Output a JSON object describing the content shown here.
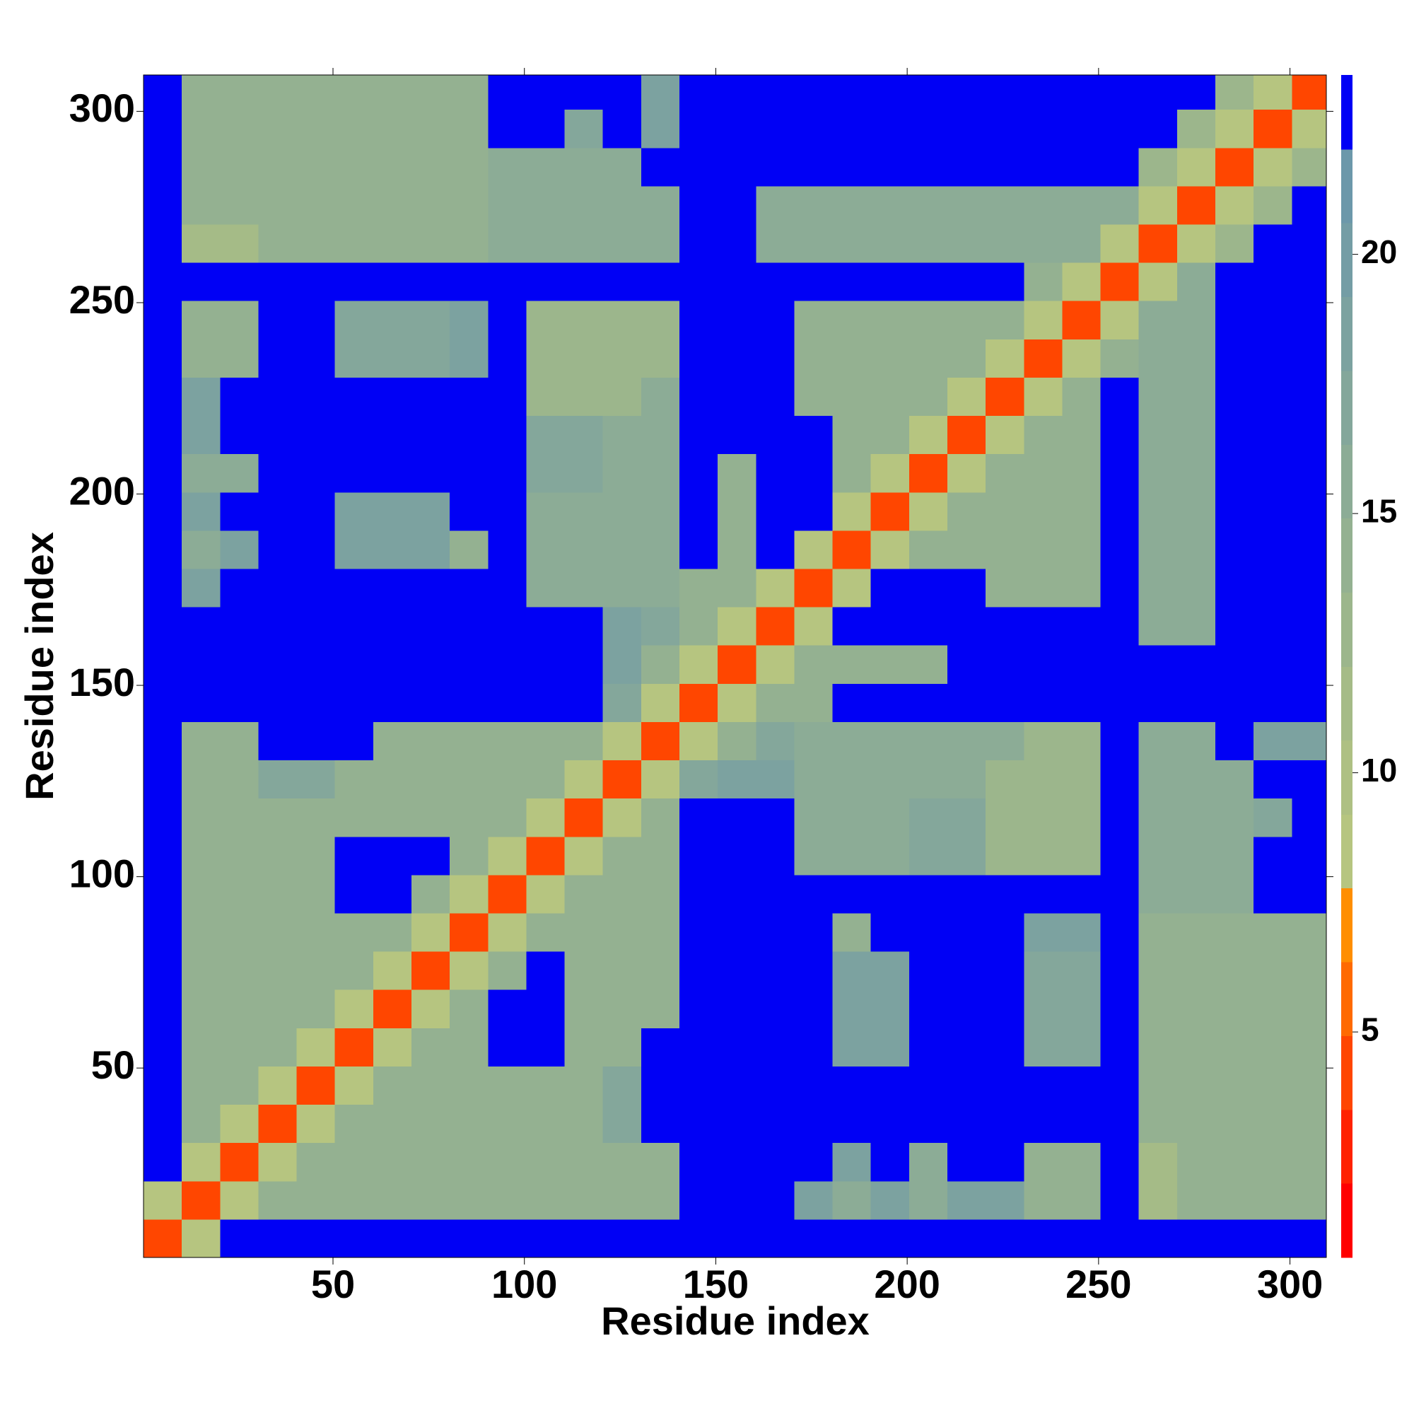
{
  "chart_data": {
    "type": "heatmap",
    "xlabel": "Residue index",
    "ylabel": "Residue index",
    "xlim": [
      0.5,
      309.5
    ],
    "ylim": [
      0.5,
      309.5
    ],
    "xticks": [
      50,
      100,
      150,
      200,
      250,
      300
    ],
    "yticks": [
      50,
      100,
      150,
      200,
      250,
      300
    ],
    "xbins": [
      0.5,
      10.5,
      20.5,
      30.5,
      40.5,
      50.5,
      60.5,
      70.5,
      80.5,
      90.5,
      100.5,
      110.5,
      120.5,
      130.5,
      140.5,
      150.5,
      160.5,
      170.5,
      180.5,
      190.5,
      200.5,
      210.5,
      220.5,
      230.5,
      240.5,
      250.5,
      260.5,
      270.5,
      280.5,
      290.5,
      300.5,
      309.5
    ],
    "ybins": [
      0.5,
      10.5,
      20.5,
      30.5,
      40.5,
      50.5,
      60.5,
      70.5,
      80.5,
      90.5,
      100.5,
      110.5,
      120.5,
      130.5,
      140.5,
      150.5,
      160.5,
      170.5,
      180.5,
      190.5,
      200.5,
      210.5,
      220.5,
      230.5,
      240.5,
      250.5,
      260.5,
      270.5,
      280.5,
      290.5,
      300.5,
      309.5
    ],
    "values": [
      [
        3.8,
        8.5,
        23,
        23,
        23,
        23,
        23,
        23,
        23,
        23,
        23,
        23,
        23,
        23,
        23,
        23,
        23,
        23,
        23,
        23,
        23,
        23,
        23,
        23,
        23,
        23,
        23,
        23,
        23,
        23,
        23
      ],
      [
        8.5,
        3.8,
        8.5,
        14,
        14,
        14,
        14,
        14,
        14,
        14,
        14,
        14,
        14,
        14,
        23,
        23,
        23,
        18,
        15,
        19,
        15,
        19,
        19,
        14,
        14,
        23,
        12,
        14,
        14,
        14,
        14
      ],
      [
        23,
        8.5,
        3.8,
        8.5,
        14,
        14,
        14,
        14,
        14,
        14,
        14,
        14,
        14,
        14,
        23,
        23,
        23,
        23,
        18,
        23,
        16,
        23,
        23,
        14,
        14,
        23,
        12,
        14,
        14,
        14,
        14
      ],
      [
        23,
        14,
        8.5,
        3.8,
        8.5,
        14,
        14,
        14,
        14,
        14,
        14,
        14,
        17,
        23,
        23,
        23,
        23,
        23,
        23,
        23,
        23,
        23,
        23,
        23,
        23,
        23,
        14,
        14,
        14,
        14,
        14
      ],
      [
        23,
        14,
        14,
        8.5,
        3.8,
        8.5,
        14,
        14,
        14,
        14,
        14,
        14,
        17,
        23,
        23,
        23,
        23,
        23,
        23,
        23,
        23,
        23,
        23,
        23,
        23,
        23,
        14,
        14,
        14,
        14,
        14
      ],
      [
        23,
        14,
        14,
        14,
        8.5,
        3.8,
        8.5,
        14,
        14,
        23,
        23,
        14,
        14,
        23,
        23,
        23,
        23,
        23,
        18,
        18,
        23,
        23,
        23,
        17,
        17,
        23,
        14,
        14,
        14,
        14,
        14
      ],
      [
        23,
        14,
        14,
        14,
        14,
        8.5,
        3.8,
        8.5,
        14,
        23,
        23,
        14,
        14,
        14,
        23,
        23,
        23,
        23,
        18,
        18,
        23,
        23,
        23,
        17,
        17,
        23,
        14,
        14,
        14,
        14,
        14
      ],
      [
        23,
        14,
        14,
        14,
        14,
        14,
        8.5,
        3.8,
        8.5,
        14,
        23,
        14,
        14,
        14,
        23,
        23,
        23,
        23,
        18,
        18,
        23,
        23,
        23,
        17,
        17,
        23,
        14,
        14,
        14,
        14,
        14
      ],
      [
        23,
        14,
        14,
        14,
        14,
        14,
        14,
        8.5,
        3.8,
        8.5,
        14,
        14,
        14,
        14,
        23,
        23,
        23,
        23,
        14,
        23,
        23,
        23,
        23,
        18,
        18,
        23,
        14,
        14,
        14,
        14,
        14
      ],
      [
        23,
        14,
        14,
        14,
        14,
        23,
        23,
        14,
        8.5,
        3.8,
        8.5,
        14,
        14,
        14,
        23,
        23,
        23,
        23,
        23,
        23,
        23,
        23,
        23,
        23,
        23,
        23,
        15,
        15,
        15,
        23,
        23
      ],
      [
        23,
        14,
        14,
        14,
        14,
        23,
        23,
        23,
        14,
        8.5,
        3.8,
        8.5,
        14,
        14,
        23,
        23,
        23,
        15,
        15,
        15,
        17,
        17,
        13,
        13,
        13,
        23,
        15,
        15,
        15,
        23,
        23
      ],
      [
        23,
        14,
        14,
        14,
        14,
        14,
        14,
        14,
        14,
        14,
        8.5,
        3.8,
        8.5,
        14,
        23,
        23,
        23,
        15,
        15,
        15,
        17,
        17,
        13,
        13,
        13,
        23,
        15,
        15,
        15,
        17,
        23
      ],
      [
        23,
        14,
        14,
        17,
        17,
        14,
        14,
        14,
        14,
        14,
        14,
        8.5,
        3.8,
        8.5,
        17,
        18,
        18,
        15,
        15,
        15,
        16,
        16,
        13,
        13,
        13,
        23,
        15,
        15,
        15,
        23,
        23
      ],
      [
        23,
        14,
        14,
        23,
        23,
        23,
        14,
        14,
        14,
        14,
        14,
        14,
        8.5,
        3.8,
        8.5,
        14,
        17,
        15,
        15,
        15,
        16,
        16,
        15,
        13,
        13,
        23,
        15,
        15,
        23,
        19,
        19
      ],
      [
        23,
        23,
        23,
        23,
        23,
        23,
        23,
        23,
        23,
        23,
        23,
        23,
        17,
        8.5,
        3.8,
        8.5,
        14,
        14,
        23,
        23,
        23,
        23,
        23,
        23,
        23,
        23,
        23,
        23,
        23,
        23,
        23
      ],
      [
        23,
        23,
        23,
        23,
        23,
        23,
        23,
        23,
        23,
        23,
        23,
        23,
        18,
        14,
        8.5,
        3.8,
        8.5,
        14,
        14,
        14,
        14,
        23,
        23,
        23,
        23,
        23,
        23,
        23,
        23,
        23,
        23
      ],
      [
        23,
        23,
        23,
        23,
        23,
        23,
        23,
        23,
        23,
        23,
        23,
        23,
        18,
        17,
        14,
        8.5,
        3.8,
        8.5,
        23,
        23,
        23,
        23,
        23,
        23,
        23,
        23,
        16,
        16,
        23,
        23,
        23
      ],
      [
        23,
        18,
        23,
        23,
        23,
        23,
        23,
        23,
        23,
        23,
        15,
        15,
        15,
        15,
        14,
        14,
        8.5,
        3.8,
        8.5,
        23,
        23,
        23,
        14,
        14,
        14,
        23,
        16,
        16,
        23,
        23,
        23
      ],
      [
        23,
        15,
        18,
        23,
        23,
        18,
        18,
        18,
        14,
        23,
        15,
        15,
        15,
        15,
        23,
        14,
        23,
        8.5,
        3.8,
        8.5,
        14,
        14,
        14,
        14,
        14,
        23,
        16,
        16,
        23,
        23,
        23
      ],
      [
        23,
        19,
        23,
        23,
        23,
        18,
        18,
        18,
        23,
        23,
        15,
        15,
        15,
        15,
        23,
        14,
        23,
        23,
        8.5,
        3.8,
        8.5,
        14,
        14,
        14,
        14,
        23,
        16,
        16,
        23,
        23,
        23
      ],
      [
        23,
        15,
        16,
        23,
        23,
        23,
        23,
        23,
        23,
        23,
        17,
        17,
        16,
        16,
        23,
        14,
        23,
        23,
        14,
        8.5,
        3.8,
        8.5,
        14,
        14,
        14,
        23,
        16,
        16,
        23,
        23,
        23
      ],
      [
        23,
        19,
        23,
        23,
        23,
        23,
        23,
        23,
        23,
        23,
        17,
        17,
        16,
        16,
        23,
        23,
        23,
        23,
        14,
        14,
        8.5,
        3.8,
        8.5,
        14,
        14,
        23,
        16,
        16,
        23,
        23,
        23
      ],
      [
        23,
        19,
        23,
        23,
        23,
        23,
        23,
        23,
        23,
        23,
        13,
        13,
        13,
        15,
        23,
        23,
        23,
        14,
        14,
        14,
        14,
        8.5,
        3.8,
        8.5,
        14,
        23,
        16,
        16,
        23,
        23,
        23
      ],
      [
        23,
        14,
        14,
        23,
        23,
        17,
        17,
        17,
        18,
        23,
        13,
        13,
        13,
        13,
        23,
        23,
        23,
        14,
        14,
        14,
        14,
        14,
        8.5,
        3.8,
        8.5,
        14,
        16,
        16,
        23,
        23,
        23
      ],
      [
        23,
        14,
        14,
        23,
        23,
        17,
        17,
        17,
        18,
        23,
        13,
        13,
        13,
        13,
        23,
        23,
        23,
        14,
        14,
        14,
        14,
        14,
        14,
        8.5,
        3.8,
        8.5,
        16,
        16,
        23,
        23,
        23
      ],
      [
        23,
        23,
        23,
        23,
        23,
        23,
        23,
        23,
        23,
        23,
        23,
        23,
        23,
        23,
        23,
        23,
        23,
        23,
        23,
        23,
        23,
        23,
        23,
        14,
        8.5,
        3.8,
        8.5,
        16,
        23,
        23,
        23
      ],
      [
        23,
        12,
        12,
        14,
        14,
        14,
        14,
        14,
        14,
        15,
        15,
        15,
        15,
        15,
        23,
        23,
        16,
        16,
        16,
        16,
        16,
        16,
        16,
        16,
        16,
        8.5,
        3.8,
        8.5,
        13,
        23,
        23
      ],
      [
        23,
        14,
        14,
        14,
        14,
        14,
        14,
        14,
        14,
        15,
        15,
        15,
        15,
        15,
        23,
        23,
        16,
        16,
        16,
        16,
        16,
        16,
        16,
        16,
        16,
        16,
        8.5,
        3.8,
        8.5,
        13,
        23
      ],
      [
        23,
        14,
        14,
        14,
        14,
        14,
        14,
        14,
        14,
        15,
        15,
        15,
        15,
        23,
        23,
        23,
        23,
        23,
        23,
        23,
        23,
        23,
        23,
        23,
        23,
        23,
        13,
        8.5,
        3.8,
        8.5,
        13
      ],
      [
        23,
        14,
        14,
        14,
        14,
        14,
        14,
        14,
        14,
        23,
        23,
        17,
        23,
        19,
        23,
        23,
        23,
        23,
        23,
        23,
        23,
        23,
        23,
        23,
        23,
        23,
        23,
        13,
        8.5,
        3.8,
        8.5
      ],
      [
        23,
        14,
        14,
        14,
        14,
        14,
        14,
        14,
        14,
        23,
        23,
        23,
        23,
        19,
        23,
        23,
        23,
        23,
        23,
        23,
        23,
        23,
        23,
        23,
        23,
        23,
        23,
        23,
        13,
        8.5,
        3.8
      ]
    ],
    "colorbar": {
      "zlim": [
        0.65,
        23.46
      ],
      "ticks": [
        5,
        10,
        15,
        20
      ],
      "levels": [
        0.65,
        2.08,
        3.5,
        4.93,
        6.35,
        7.78,
        9.2,
        10.63,
        12.05,
        13.48,
        14.91,
        16.33,
        17.76,
        19.18,
        20.61,
        22.03,
        23.46
      ],
      "colors": [
        "#ff0000",
        "#ff2200",
        "#ff4600",
        "#ff6a00",
        "#ff8e00",
        "#b6c580",
        "#aec083",
        "#a5bb87",
        "#9cb68c",
        "#94b191",
        "#8cac96",
        "#84a79b",
        "#7ca2a0",
        "#749da5",
        "#6c98aa",
        "#0000f5"
      ]
    }
  }
}
